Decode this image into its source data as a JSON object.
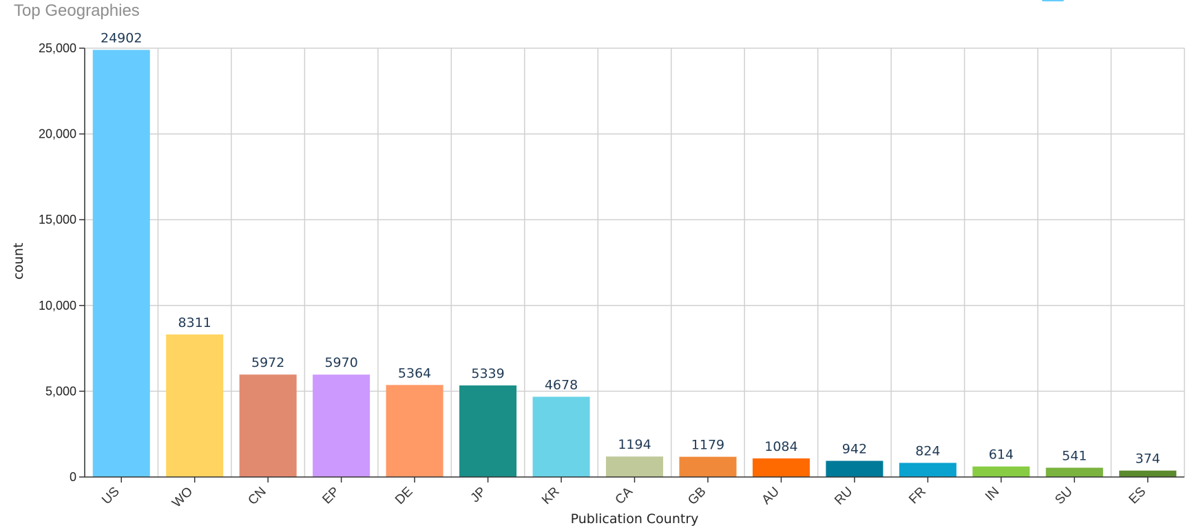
{
  "chart_data": {
    "type": "bar",
    "title": "Top Geographies",
    "xlabel": "Publication Country",
    "ylabel": "count",
    "ylim": [
      0,
      25000
    ],
    "yticks": [
      0,
      5000,
      10000,
      15000,
      20000,
      25000
    ],
    "ytick_labels": [
      "0",
      "5,000",
      "10,000",
      "15,000",
      "20,000",
      "25,000"
    ],
    "grid": true,
    "legend_color": "#66ccff",
    "categories": [
      "US",
      "WO",
      "CN",
      "EP",
      "DE",
      "JP",
      "KR",
      "CA",
      "GB",
      "AU",
      "RU",
      "FR",
      "IN",
      "SU",
      "ES"
    ],
    "values": [
      24902,
      8311,
      5972,
      5970,
      5364,
      5339,
      4678,
      1194,
      1179,
      1084,
      942,
      824,
      614,
      541,
      374
    ],
    "colors": [
      "#66ccff",
      "#ffd460",
      "#e28a6f",
      "#cc99ff",
      "#ff9966",
      "#1a8f87",
      "#6ad3e8",
      "#c0c99a",
      "#f08a3a",
      "#ff6a00",
      "#007a99",
      "#0aa3d0",
      "#88cc44",
      "#7ab33e",
      "#5c8a2e"
    ]
  }
}
